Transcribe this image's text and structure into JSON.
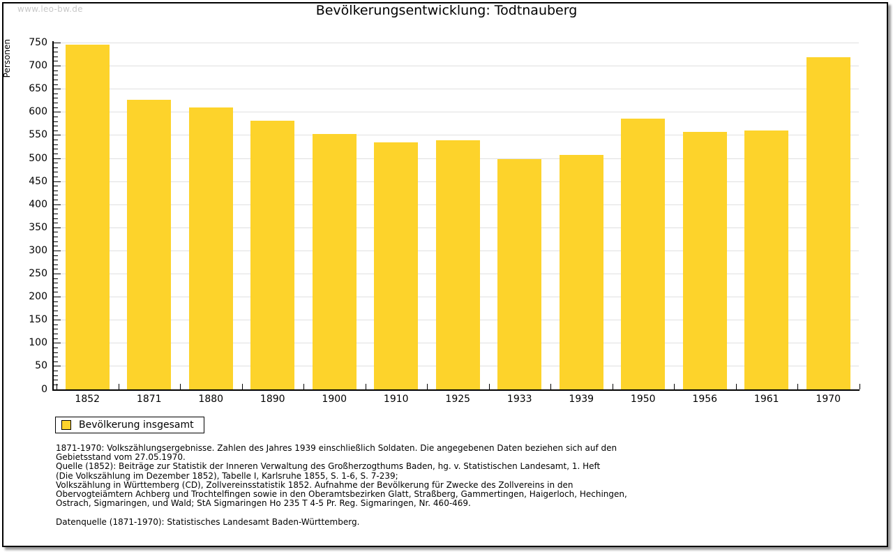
{
  "watermark": "www.leo-bw.de",
  "chart_data": {
    "type": "bar",
    "title": "Bevölkerungsentwicklung: Todtnauberg",
    "ylabel": "Personen",
    "xlabel": "",
    "ylim": [
      0,
      750
    ],
    "ytick_step": 50,
    "yminor_step": 10,
    "grid": "horizontal",
    "categories": [
      "1852",
      "1871",
      "1880",
      "1890",
      "1900",
      "1910",
      "1925",
      "1933",
      "1939",
      "1950",
      "1956",
      "1961",
      "1970"
    ],
    "values": [
      746,
      627,
      610,
      581,
      553,
      535,
      540,
      499,
      507,
      586,
      558,
      561,
      719
    ],
    "series_name": "Bevölkerung insgesamt",
    "bar_color": "#fdd32b",
    "gridline_color": "#e0e0e0",
    "axis_color": "#000000",
    "legend_position": "bottom-left",
    "legend": [
      {
        "label": "Bevölkerung insgesamt",
        "color": "#fdd32b"
      }
    ]
  },
  "notes": {
    "lines": [
      "1871-1970: Volkszählungsergebnisse. Zahlen des Jahres 1939 einschließlich Soldaten. Die angegebenen Daten beziehen sich auf den",
      "Gebietsstand vom 27.05.1970.",
      "Quelle (1852): Beiträge zur Statistik der Inneren Verwaltung des Großherzogthums Baden, hg. v. Statistischen Landesamt, 1. Heft",
      "(Die Volkszählung im Dezember 1852), Tabelle I, Karlsruhe 1855, S. 1-6, S. 7-239;",
      "Volkszählung in Württemberg (CD), Zollvereinsstatistik 1852. Aufnahme der Bevölkerung für Zwecke des Zollvereins in den",
      "Obervogteiämtern Achberg und Trochtelfingen sowie in den Oberamtsbezirken Glatt, Straßberg, Gammertingen, Haigerloch, Hechingen,",
      "Ostrach, Sigmaringen, und Wald; StA Sigmaringen Ho 235 T 4-5 Pr. Reg. Sigmaringen, Nr. 460-469."
    ],
    "datasource": "Datenquelle (1871-1970): Statistisches Landesamt Baden-Württemberg."
  }
}
